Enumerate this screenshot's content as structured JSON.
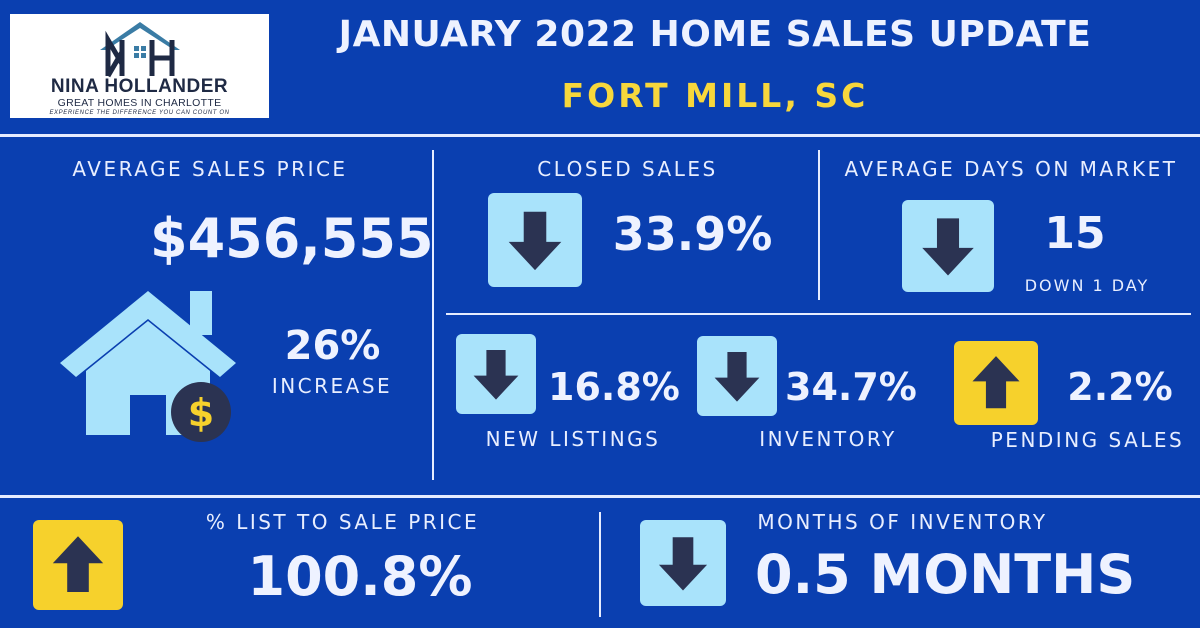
{
  "logo": {
    "brand_name": "NINA HOLLANDER",
    "brand_sub": "GREAT HOMES IN CHARLOTTE",
    "tagline": "EXPERIENCE THE DIFFERENCE YOU CAN COUNT ON",
    "monogram": "NH"
  },
  "header": {
    "title": "JANUARY 2022 HOME SALES UPDATE",
    "location": "FORT MILL, SC"
  },
  "colors": {
    "background": "#0a3fb0",
    "accent_yellow": "#f6d12c",
    "arrow_box_light": "#a9e3fb",
    "arrow_color": "#2b3352",
    "house_color": "#a9e3fb"
  },
  "avg_sales_price": {
    "label": "AVERAGE SALES PRICE",
    "value": "$456,555",
    "change": "26%",
    "change_label": "INCREASE",
    "icon": "house-with-dollar-icon"
  },
  "closed_sales": {
    "label": "CLOSED SALES",
    "value": "33.9%",
    "direction": "down"
  },
  "avg_days_on_market": {
    "label": "AVERAGE DAYS ON MARKET",
    "value": "15",
    "note": "DOWN 1 DAY",
    "direction": "down"
  },
  "new_listings": {
    "label": "NEW LISTINGS",
    "value": "16.8%",
    "direction": "down"
  },
  "inventory": {
    "label": "INVENTORY",
    "value": "34.7%",
    "direction": "down"
  },
  "pending_sales": {
    "label": "PENDING SALES",
    "value": "2.2%",
    "direction": "up"
  },
  "list_to_sale": {
    "label": "% LIST TO SALE PRICE",
    "value": "100.8%",
    "direction": "up"
  },
  "months_of_inventory": {
    "label": "MONTHS OF INVENTORY",
    "value": "0.5 MONTHS",
    "direction": "down"
  }
}
